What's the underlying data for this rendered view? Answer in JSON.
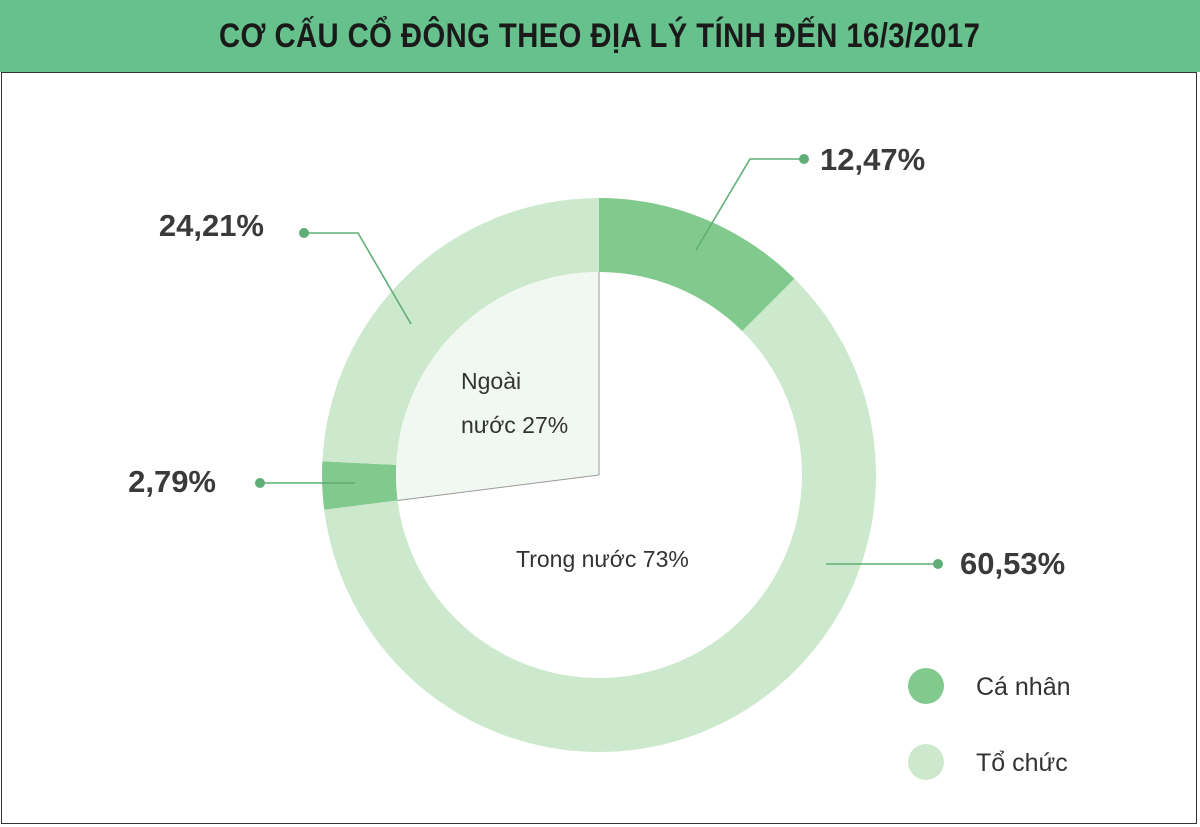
{
  "title": "CƠ CẤU CỔ ĐÔNG THEO ĐỊA LÝ TÍNH ĐẾN 16/3/2017",
  "colors": {
    "header": "#66c18c",
    "ca_nhan": "#82c98e",
    "to_chuc": "#cde9cd",
    "leader": "#5fae75"
  },
  "chart_data": {
    "type": "pie",
    "title": "CƠ CẤU CỔ ĐÔNG THEO ĐỊA LÝ TÍNH ĐẾN 16/3/2017",
    "series": [
      {
        "name": "Cá nhân",
        "color": "#82c98e"
      },
      {
        "name": "Tổ chức",
        "color": "#cde9cd"
      }
    ],
    "slices": [
      {
        "series": "Cá nhân",
        "value": 12.47,
        "label": "12,47%"
      },
      {
        "series": "Tổ chức",
        "value": 60.53,
        "label": "60,53%"
      },
      {
        "series": "Cá nhân",
        "value": 2.79,
        "label": "2,79%"
      },
      {
        "series": "Tổ chức",
        "value": 24.21,
        "label": "24,21%"
      }
    ],
    "inner_groups": [
      {
        "label_line1": "Trong nước 73%",
        "label_line2": "",
        "value": 73
      },
      {
        "label_line1": "Ngoài",
        "label_line2": "nước 27%",
        "value": 27
      }
    ],
    "legend": {
      "position": "bottom-right",
      "items": [
        "Cá nhân",
        "Tổ chức"
      ]
    }
  }
}
